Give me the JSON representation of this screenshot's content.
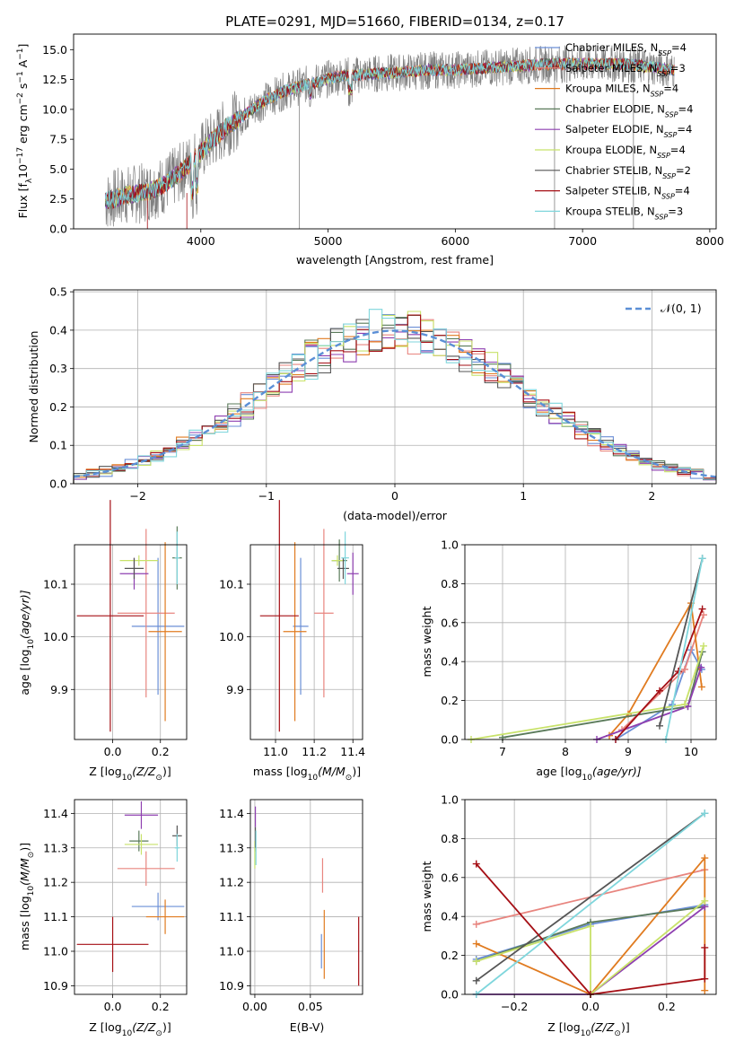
{
  "title": "PLATE=0291, MJD=51660, FIBERID=0134, z=0.17",
  "colors": {
    "Chabrier MILES": "#6b8fd6",
    "Salpeter MILES": "#e8857f",
    "Kroupa MILES": "#e07b20",
    "Chabrier ELODIE": "#5a7a5a",
    "Salpeter ELODIE": "#8e3fb0",
    "Kroupa ELODIE": "#c8e26a",
    "Chabrier STELIB": "#555555",
    "Salpeter STELIB": "#a50f15",
    "Kroupa STELIB": "#7fd6dc",
    "pink": "#e37fbf",
    "data": "#808080",
    "normal": "#5b8fd6"
  },
  "chart_data": [
    {
      "type": "line",
      "id": "spectrum",
      "title": "PLATE=0291, MJD=51660, FIBERID=0134, z=0.17",
      "xlabel": "wavelength [Angstrom, rest frame]",
      "ylabel": "Flux [f",
      "ylabel_sub": "λ",
      "ylabel_mid": "10",
      "ylabel_sup1": "−17",
      "ylabel_tail": " erg cm",
      "ylabel_sup2": "−2",
      "ylabel_tail2": " s",
      "ylabel_sup3": "−1",
      "ylabel_tail3": " A",
      "ylabel_sup4": "−1",
      "ylabel_end": "]",
      "xlim": [
        3000,
        8050
      ],
      "ylim": [
        0,
        16.3
      ],
      "xticks": [
        "4000",
        "5000",
        "6000",
        "7000",
        "8000"
      ],
      "xtick_values": [
        4000,
        5000,
        6000,
        7000,
        8000
      ],
      "yticks": [
        "0.0",
        "2.5",
        "5.0",
        "7.5",
        "10.0",
        "12.5",
        "15.0"
      ],
      "ytick_values": [
        0,
        2.5,
        5,
        7.5,
        10,
        12.5,
        15
      ],
      "continuum": [
        [
          3250,
          2.3
        ],
        [
          3400,
          2.8
        ],
        [
          3550,
          3.0
        ],
        [
          3700,
          3.6
        ],
        [
          3850,
          4.8
        ],
        [
          3950,
          5.9
        ],
        [
          4050,
          7.0
        ],
        [
          4200,
          8.5
        ],
        [
          4350,
          9.6
        ],
        [
          4500,
          10.7
        ],
        [
          4650,
          11.5
        ],
        [
          4800,
          12.0
        ],
        [
          4950,
          12.4
        ],
        [
          5100,
          12.8
        ],
        [
          5250,
          12.9
        ],
        [
          5400,
          13.0
        ],
        [
          5550,
          13.1
        ],
        [
          5700,
          13.2
        ],
        [
          5850,
          13.3
        ],
        [
          6000,
          13.3
        ],
        [
          6150,
          13.4
        ],
        [
          6300,
          13.5
        ],
        [
          6450,
          13.6
        ],
        [
          6600,
          13.7
        ],
        [
          6750,
          13.8
        ],
        [
          6900,
          13.8
        ],
        [
          7050,
          13.8
        ],
        [
          7200,
          13.8
        ],
        [
          7350,
          13.8
        ],
        [
          7500,
          13.6
        ],
        [
          7600,
          13.5
        ],
        [
          7700,
          13.3
        ]
      ],
      "legend": [
        {
          "name": "Chabrier MILES",
          "n": "4"
        },
        {
          "name": "Salpeter MILES",
          "n": "3"
        },
        {
          "name": "Kroupa MILES",
          "n": "4"
        },
        {
          "name": "Chabrier ELODIE",
          "n": "4"
        },
        {
          "name": "Salpeter ELODIE",
          "n": "4"
        },
        {
          "name": "Kroupa ELODIE",
          "n": "4"
        },
        {
          "name": "Chabrier STELIB",
          "n": "2"
        },
        {
          "name": "Salpeter STELIB",
          "n": "4"
        },
        {
          "name": "Kroupa STELIB",
          "n": "3"
        }
      ],
      "legend_nlabel": "N",
      "legend_nsub": "SSP",
      "legend_placement": "right"
    },
    {
      "type": "bar",
      "id": "residuals",
      "xlabel": "(data-model)/error",
      "ylabel": "Normed distribution",
      "xlim": [
        -2.5,
        2.5
      ],
      "ylim": [
        0,
        0.505
      ],
      "grid": true,
      "xticks": [
        "−2",
        "−1",
        "0",
        "1",
        "2"
      ],
      "xtick_values": [
        -2,
        -1,
        0,
        1,
        2
      ],
      "yticks": [
        "0.0",
        "0.1",
        "0.2",
        "0.3",
        "0.4",
        "0.5"
      ],
      "ytick_values": [
        0,
        0.1,
        0.2,
        0.3,
        0.4,
        0.5
      ],
      "bin_width": 0.1,
      "legend": {
        "label": "𝒩(0, 1)",
        "placement": "top-right"
      },
      "normal_curve": {
        "mu": 0,
        "sigma": 1
      }
    },
    {
      "type": "scatter",
      "id": "age-vs-Z",
      "xlabel": "Z [log",
      "xlabel_sub": "10",
      "xlabel_tail": "(Z/Z",
      "xlabel_sub2": "⊙",
      "xlabel_end": ")]",
      "ylabel": "age  [log",
      "ylabel_sub": "10",
      "ylabel_tail": "(age/yr)]",
      "xlim": [
        -0.16,
        0.31
      ],
      "ylim": [
        9.805,
        10.175
      ],
      "grid": true,
      "xticks": [
        "0.0",
        "0.2"
      ],
      "xtick_values": [
        0,
        0.2
      ],
      "yticks": [
        "9.9",
        "10.0",
        "10.1"
      ],
      "ytick_values": [
        9.9,
        10.0,
        10.1
      ],
      "points": [
        {
          "series": "Chabrier MILES",
          "x": 0.19,
          "y": 10.02,
          "xerr": 0.11,
          "yerr": 0.13
        },
        {
          "series": "Salpeter MILES",
          "x": 0.14,
          "y": 10.045,
          "xerr": 0.12,
          "yerr": 0.16
        },
        {
          "series": "Kroupa MILES",
          "x": 0.22,
          "y": 10.01,
          "xerr": 0.07,
          "yerr": 0.17
        },
        {
          "series": "Chabrier ELODIE",
          "x": 0.27,
          "y": 10.15,
          "xerr": 0.02,
          "yerr": 0.06
        },
        {
          "series": "Salpeter ELODIE",
          "x": 0.09,
          "y": 10.12,
          "xerr": 0.06,
          "yerr": 0.03
        },
        {
          "series": "Kroupa ELODIE",
          "x": 0.11,
          "y": 10.145,
          "xerr": 0.08,
          "yerr": 0.01
        },
        {
          "series": "Chabrier STELIB",
          "x": 0.09,
          "y": 10.13,
          "xerr": 0.04,
          "yerr": 0.02
        },
        {
          "series": "Salpeter STELIB",
          "x": -0.01,
          "y": 10.04,
          "xerr": 0.14,
          "yerr": 0.22
        },
        {
          "series": "Kroupa STELIB",
          "x": 0.27,
          "y": 10.15,
          "xerr": 0.01,
          "yerr": 0.05
        }
      ]
    },
    {
      "type": "scatter",
      "id": "age-vs-mass",
      "xlabel": "mass [log",
      "xlabel_sub": "10",
      "xlabel_tail": "(M/M",
      "xlabel_sub2": "⊙",
      "xlabel_end": ")]",
      "xlim": [
        10.87,
        11.45
      ],
      "ylim": [
        9.805,
        10.175
      ],
      "grid": true,
      "xticks": [
        "11.0",
        "11.2",
        "11.4"
      ],
      "xtick_values": [
        11.0,
        11.2,
        11.4
      ],
      "yticks": [
        "9.9",
        "10.0",
        "10.1"
      ],
      "ytick_values": [
        9.9,
        10.0,
        10.1
      ],
      "points": [
        {
          "series": "Chabrier MILES",
          "x": 11.13,
          "y": 10.02,
          "xerr": 0.04,
          "yerr": 0.13
        },
        {
          "series": "Salpeter MILES",
          "x": 11.25,
          "y": 10.045,
          "xerr": 0.05,
          "yerr": 0.16
        },
        {
          "series": "Kroupa MILES",
          "x": 11.1,
          "y": 10.01,
          "xerr": 0.06,
          "yerr": 0.17
        },
        {
          "series": "Chabrier ELODIE",
          "x": 11.33,
          "y": 10.145,
          "xerr": 0.04,
          "yerr": 0.04
        },
        {
          "series": "Salpeter ELODIE",
          "x": 11.4,
          "y": 10.12,
          "xerr": 0.03,
          "yerr": 0.04
        },
        {
          "series": "Kroupa ELODIE",
          "x": 11.32,
          "y": 10.145,
          "xerr": 0.03,
          "yerr": 0.01
        },
        {
          "series": "Chabrier STELIB",
          "x": 11.35,
          "y": 10.13,
          "xerr": 0.03,
          "yerr": 0.02
        },
        {
          "series": "Salpeter STELIB",
          "x": 11.02,
          "y": 10.04,
          "xerr": 0.1,
          "yerr": 0.22
        },
        {
          "series": "Kroupa STELIB",
          "x": 11.36,
          "y": 10.15,
          "xerr": 0.02,
          "yerr": 0.05
        }
      ]
    },
    {
      "type": "line",
      "id": "massweight-vs-age",
      "xlabel": "age  [log",
      "xlabel_sub": "10",
      "xlabel_tail": "(age/yr)]",
      "ylabel": "mass weight",
      "xlim": [
        6.4,
        10.4
      ],
      "ylim": [
        0,
        1
      ],
      "grid": true,
      "xticks": [
        "7",
        "8",
        "9",
        "10"
      ],
      "xtick_values": [
        7,
        8,
        9,
        10
      ],
      "yticks": [
        "0.0",
        "0.2",
        "0.4",
        "0.6",
        "0.8",
        "1.0"
      ],
      "ytick_values": [
        0,
        0.2,
        0.4,
        0.6,
        0.8,
        1
      ],
      "series": [
        {
          "name": "Chabrier MILES",
          "points": [
            [
              8.8,
              0.0
            ],
            [
              9.7,
              0.18
            ],
            [
              10.0,
              0.46
            ],
            [
              10.17,
              0.36
            ]
          ]
        },
        {
          "name": "Salpeter MILES",
          "points": [
            [
              8.9,
              0.05
            ],
            [
              9.9,
              0.36
            ],
            [
              10.2,
              0.64
            ]
          ]
        },
        {
          "name": "Kroupa MILES",
          "points": [
            [
              8.7,
              0.02
            ],
            [
              9.0,
              0.13
            ],
            [
              10.0,
              0.7
            ],
            [
              10.17,
              0.27
            ]
          ]
        },
        {
          "name": "Chabrier ELODIE",
          "points": [
            [
              7.0,
              0.01
            ],
            [
              9.95,
              0.17
            ],
            [
              10.18,
              0.45
            ]
          ]
        },
        {
          "name": "Salpeter ELODIE",
          "points": [
            [
              8.5,
              0.0
            ],
            [
              9.95,
              0.17
            ],
            [
              10.16,
              0.37
            ]
          ]
        },
        {
          "name": "Kroupa ELODIE",
          "points": [
            [
              6.5,
              0.0
            ],
            [
              9.9,
              0.18
            ],
            [
              10.2,
              0.48
            ]
          ]
        },
        {
          "name": "Chabrier STELIB",
          "points": [
            [
              9.5,
              0.07
            ],
            [
              10.18,
              0.93
            ]
          ]
        },
        {
          "name": "Salpeter STELIB",
          "points": [
            [
              8.8,
              0.0
            ],
            [
              9.5,
              0.25
            ],
            [
              9.8,
              0.35
            ],
            [
              10.18,
              0.67
            ]
          ]
        },
        {
          "name": "Kroupa STELIB",
          "points": [
            [
              9.6,
              0.0
            ],
            [
              10.18,
              0.93
            ]
          ]
        }
      ]
    },
    {
      "type": "scatter",
      "id": "mass-vs-Z",
      "xlabel": "Z [log",
      "xlabel_sub": "10",
      "xlabel_tail": "(Z/Z",
      "xlabel_sub2": "⊙",
      "xlabel_end": ")]",
      "ylabel": "mass [log",
      "ylabel_sub": "10",
      "ylabel_tail": "(M/M",
      "ylabel_sub2": "⊙",
      "ylabel_end": ")]",
      "xlim": [
        -0.16,
        0.31
      ],
      "ylim": [
        10.875,
        11.44
      ],
      "grid": true,
      "xticks": [
        "0.0",
        "0.2"
      ],
      "xtick_values": [
        0,
        0.2
      ],
      "yticks": [
        "10.9",
        "11.0",
        "11.1",
        "11.2",
        "11.3",
        "11.4"
      ],
      "ytick_values": [
        10.9,
        11.0,
        11.1,
        11.2,
        11.3,
        11.4
      ],
      "points": [
        {
          "series": "Chabrier MILES",
          "x": 0.19,
          "y": 11.13,
          "xerr": 0.11,
          "yerr": 0.04
        },
        {
          "series": "Salpeter MILES",
          "x": 0.14,
          "y": 11.24,
          "xerr": 0.12,
          "yerr": 0.05
        },
        {
          "series": "Kroupa MILES",
          "x": 0.22,
          "y": 11.1,
          "xerr": 0.08,
          "yerr": 0.05
        },
        {
          "series": "Chabrier ELODIE",
          "x": 0.11,
          "y": 11.32,
          "xerr": 0.04,
          "yerr": 0.03
        },
        {
          "series": "Salpeter ELODIE",
          "x": 0.12,
          "y": 11.395,
          "xerr": 0.07,
          "yerr": 0.04
        },
        {
          "series": "Kroupa ELODIE",
          "x": 0.12,
          "y": 11.31,
          "xerr": 0.07,
          "yerr": 0.03
        },
        {
          "series": "Chabrier STELIB",
          "x": 0.27,
          "y": 11.335,
          "xerr": 0.02,
          "yerr": 0.03
        },
        {
          "series": "Salpeter STELIB",
          "x": 0.0,
          "y": 11.02,
          "xerr": 0.15,
          "yerr": 0.08
        },
        {
          "series": "Kroupa STELIB",
          "x": 0.27,
          "y": 11.3,
          "xerr": 0.01,
          "yerr": 0.04
        }
      ]
    },
    {
      "type": "scatter",
      "id": "mass-vs-EBV",
      "xlabel": "E(B-V)",
      "xlim": [
        -0.004,
        0.097
      ],
      "ylim": [
        10.875,
        11.44
      ],
      "grid": true,
      "xticks": [
        "0.00",
        "0.05"
      ],
      "xtick_values": [
        0,
        0.05
      ],
      "yticks": [
        "10.9",
        "11.0",
        "11.1",
        "11.2",
        "11.3",
        "11.4"
      ],
      "ytick_values": [
        10.9,
        11.0,
        11.1,
        11.2,
        11.3,
        11.4
      ],
      "points": [
        {
          "series": "Chabrier MILES",
          "x": 0.06,
          "y": 11.0,
          "yerr": 0.05
        },
        {
          "series": "Salpeter MILES",
          "x": 0.061,
          "y": 11.22,
          "yerr": 0.05
        },
        {
          "series": "Kroupa MILES",
          "x": 0.0625,
          "y": 11.02,
          "yerr": 0.1
        },
        {
          "series": "Chabrier ELODIE",
          "x": 0.0005,
          "y": 11.32,
          "yerr": 0.03
        },
        {
          "series": "Salpeter ELODIE",
          "x": 0.0005,
          "y": 11.39,
          "yerr": 0.03
        },
        {
          "series": "Kroupa ELODIE",
          "x": 0.0,
          "y": 11.28,
          "yerr": 0.04
        },
        {
          "series": "Chabrier STELIB",
          "x": 0.0005,
          "y": 11.33,
          "yerr": 0.03
        },
        {
          "series": "Salpeter STELIB",
          "x": 0.0935,
          "y": 11.0,
          "yerr": 0.1
        },
        {
          "series": "Kroupa STELIB",
          "x": 0.001,
          "y": 11.3,
          "yerr": 0.05
        }
      ]
    },
    {
      "type": "line",
      "id": "massweight-vs-Z",
      "xlabel": "Z [log",
      "xlabel_sub": "10",
      "xlabel_tail": "(Z/Z",
      "xlabel_sub2": "⊙",
      "xlabel_end": ")]",
      "ylabel": "mass weight",
      "xlim": [
        -0.33,
        0.33
      ],
      "ylim": [
        0,
        1
      ],
      "grid": true,
      "xticks": [
        "−0.2",
        "0.0",
        "0.2"
      ],
      "xtick_values": [
        -0.2,
        0,
        0.2
      ],
      "yticks": [
        "0.0",
        "0.2",
        "0.4",
        "0.6",
        "0.8",
        "1.0"
      ],
      "ytick_values": [
        0,
        0.2,
        0.4,
        0.6,
        0.8,
        1
      ],
      "series": [
        {
          "name": "Chabrier MILES",
          "points": [
            [
              -0.3,
              0.18
            ],
            [
              0.0,
              0.36
            ],
            [
              0.3,
              0.46
            ]
          ]
        },
        {
          "name": "Salpeter MILES",
          "points": [
            [
              -0.3,
              0.36
            ],
            [
              0.3,
              0.64
            ]
          ]
        },
        {
          "name": "Kroupa MILES",
          "points": [
            [
              -0.3,
              0.26
            ],
            [
              0.0,
              0.0
            ],
            [
              0.3,
              0.7
            ],
            [
              0.3,
              0.02
            ]
          ]
        },
        {
          "name": "Chabrier ELODIE",
          "points": [
            [
              -0.3,
              0.17
            ],
            [
              0.0,
              0.37
            ],
            [
              0.3,
              0.45
            ]
          ]
        },
        {
          "name": "Salpeter ELODIE",
          "points": [
            [
              -0.3,
              0.0
            ],
            [
              0.0,
              0.0
            ],
            [
              0.3,
              0.45
            ]
          ]
        },
        {
          "name": "Kroupa ELODIE",
          "points": [
            [
              -0.3,
              0.17
            ],
            [
              0.0,
              0.35
            ],
            [
              0.0,
              0.0
            ],
            [
              0.3,
              0.48
            ]
          ]
        },
        {
          "name": "Chabrier STELIB",
          "points": [
            [
              -0.3,
              0.07
            ],
            [
              0.3,
              0.93
            ]
          ]
        },
        {
          "name": "Salpeter STELIB",
          "points": [
            [
              -0.3,
              0.67
            ],
            [
              0.0,
              0.0
            ],
            [
              0.3,
              0.08
            ],
            [
              0.3,
              0.24
            ]
          ]
        },
        {
          "name": "Kroupa STELIB",
          "points": [
            [
              -0.3,
              0.0
            ],
            [
              0.3,
              0.93
            ]
          ]
        }
      ]
    }
  ]
}
